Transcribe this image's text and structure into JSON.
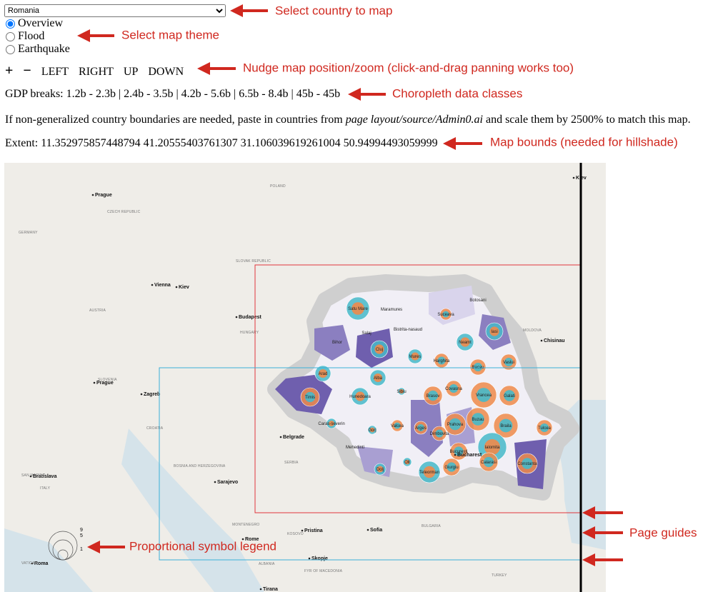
{
  "controls": {
    "country_select": "Romania",
    "themes": [
      "Overview",
      "Flood",
      "Earthquake"
    ],
    "nav": [
      "+",
      "−",
      "LEFT",
      "RIGHT",
      "UP",
      "DOWN"
    ]
  },
  "gdp_breaks": "GDP breaks: 1.2b - 2.3b | 2.4b - 3.5b | 4.2b - 5.6b | 6.5b - 8.4b | 45b - 45b",
  "note": {
    "before": "If non-generalized country boundaries are needed, paste in countries from ",
    "italic": "page layout/source/Admin0.ai",
    "after": " and scale them by 2500% to match this map."
  },
  "extent": "Extent: 11.352975857448794 41.20555403761307 31.106039619261004 50.94994493059999",
  "annotations": {
    "country": "Select country to map",
    "theme": "Select map theme",
    "nudge": "Nudge map position/zoom (click-and-drag panning works too)",
    "classes": "Choropleth data classes",
    "bounds": "Map bounds (needed for hillshade)",
    "guides": "Page guides",
    "legend": "Proportional symbol legend"
  },
  "map": {
    "cities": [
      "Prague",
      "Vienna",
      "Kiev",
      "Budapest",
      "Prague",
      "Zagreb",
      "Belgrade",
      "Sarajevo",
      "Bratislava",
      "Pristina",
      "Sofia",
      "Rome",
      "Skopje",
      "Bucharest",
      "Chisinau",
      "Kiev",
      "Roma",
      "Tirana"
    ],
    "countries": [
      "POLAND",
      "CZECH REPUBLIC",
      "GERMANY",
      "SLOVAK REPUBLIC",
      "AUSTRIA",
      "HUNGARY",
      "MOLDOVA",
      "SLOVENIA",
      "CROATIA",
      "BOSNIA AND HERZEGOVINA",
      "SERBIA",
      "SAN MARINO",
      "ITALY",
      "MONTENEGRO",
      "KOSOVO",
      "BULGARIA",
      "ALBANIA",
      "FYR OF MACEDONIA",
      "TURKEY",
      "VATICAN"
    ],
    "regions": [
      "Satu Mare",
      "Maramures",
      "Botosani",
      "Suceava",
      "Salaj",
      "Bistrita-nasaud",
      "Iasi",
      "Bihor",
      "Cluj",
      "Neamt",
      "Mures",
      "Harghita",
      "Bacau",
      "Vaslui",
      "Arad",
      "Alba",
      "Sibiu",
      "Brasov",
      "Covasna",
      "Vrancea",
      "Galati",
      "Timis",
      "Hunedoara",
      "Caras-severin",
      "Gorj",
      "Valcea",
      "Arges",
      "Prahova",
      "Buzau",
      "Braila",
      "Tulcea",
      "Dimbovita",
      "Mehedinti",
      "Bucuresti",
      "Ialomita",
      "Calarasi",
      "Constanta",
      "Dolj",
      "Olt",
      "Teleorman",
      "Giurgiu"
    ],
    "legend": [
      "9",
      "5",
      "1"
    ]
  }
}
